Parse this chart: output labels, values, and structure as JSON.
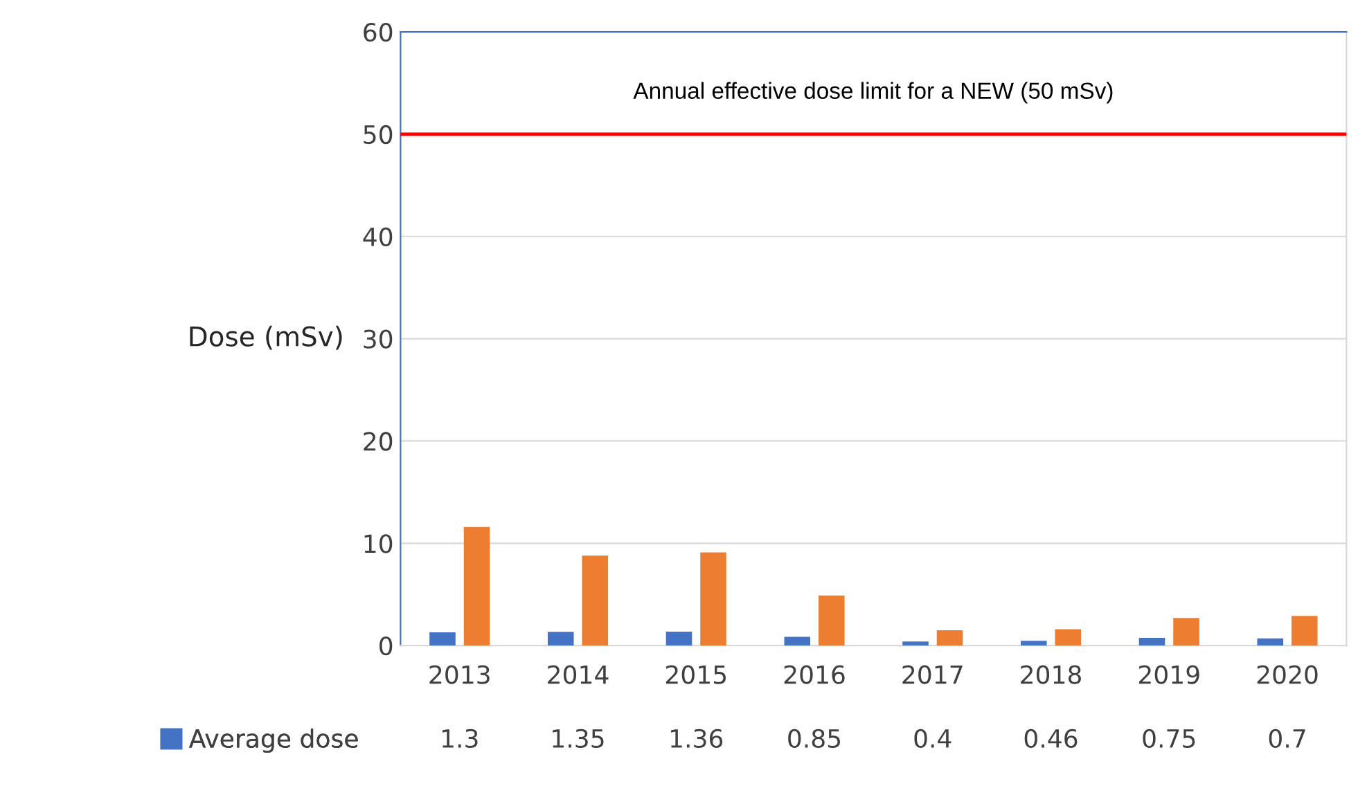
{
  "chart_data": {
    "type": "bar",
    "ylabel": "Dose (mSv)",
    "categories": [
      "2013",
      "2014",
      "2015",
      "2016",
      "2017",
      "2018",
      "2019",
      "2020"
    ],
    "series": [
      {
        "name": "Average dose",
        "color": "#4472c4",
        "values": [
          1.3,
          1.35,
          1.36,
          0.85,
          0.4,
          0.46,
          0.75,
          0.7
        ],
        "value_labels": [
          "1.3",
          "1.35",
          "1.36",
          "0.85",
          "0.4",
          "0.46",
          "0.75",
          "0.7"
        ]
      },
      {
        "color": "#ed7d31",
        "values": [
          11.6,
          8.8,
          9.1,
          4.9,
          1.5,
          1.6,
          2.7,
          2.9
        ]
      }
    ],
    "ylim": [
      0,
      60
    ],
    "yticks": [
      0,
      10,
      20,
      30,
      40,
      50,
      60
    ],
    "grid": "y",
    "ref_lines": [
      {
        "axis": "y",
        "value": 50,
        "label": "Annual effective dose limit for a NEW (50 mSv)",
        "color": "#ff0000"
      }
    ]
  }
}
